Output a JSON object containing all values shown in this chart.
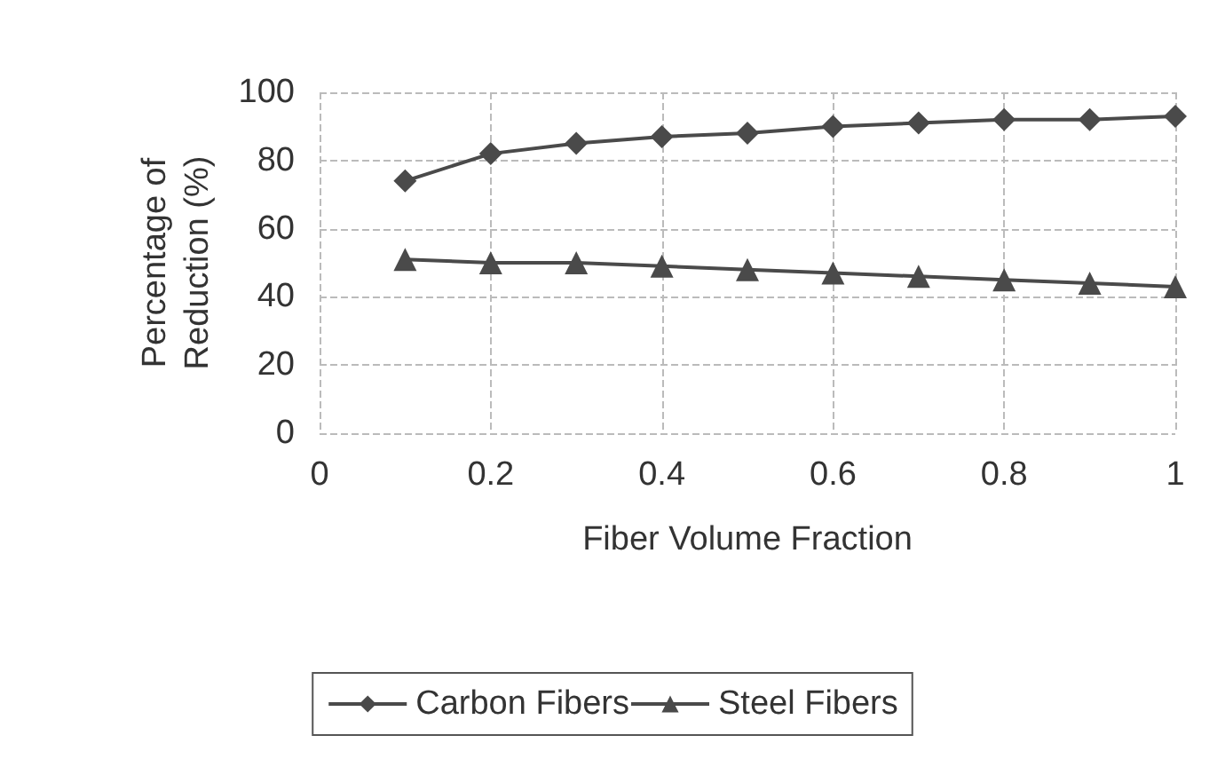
{
  "chart_data": {
    "type": "line",
    "xlabel": "Fiber Volume Fraction",
    "ylabel": "Percentage of\nReduction (%)",
    "x": [
      0.1,
      0.2,
      0.3,
      0.4,
      0.5,
      0.6,
      0.7,
      0.8,
      0.9,
      1
    ],
    "series": [
      {
        "name": "Carbon Fibers",
        "color": "#4a4a4a",
        "marker": "diamond",
        "values": [
          74,
          82,
          85,
          87,
          88,
          90,
          91,
          92,
          92,
          93
        ]
      },
      {
        "name": "Steel Fibers",
        "color": "#4a4a4a",
        "marker": "triangle",
        "values": [
          51,
          50,
          50,
          49,
          48,
          47,
          46,
          45,
          44,
          43
        ]
      }
    ],
    "xlim": [
      0,
      1
    ],
    "xticks": [
      0,
      0.2,
      0.4,
      0.6,
      0.8,
      1
    ],
    "ylim": [
      0,
      100
    ],
    "yticks": [
      0,
      20,
      40,
      60,
      80,
      100
    ],
    "grid": true,
    "legend": "bottom",
    "line_style": "solid"
  }
}
